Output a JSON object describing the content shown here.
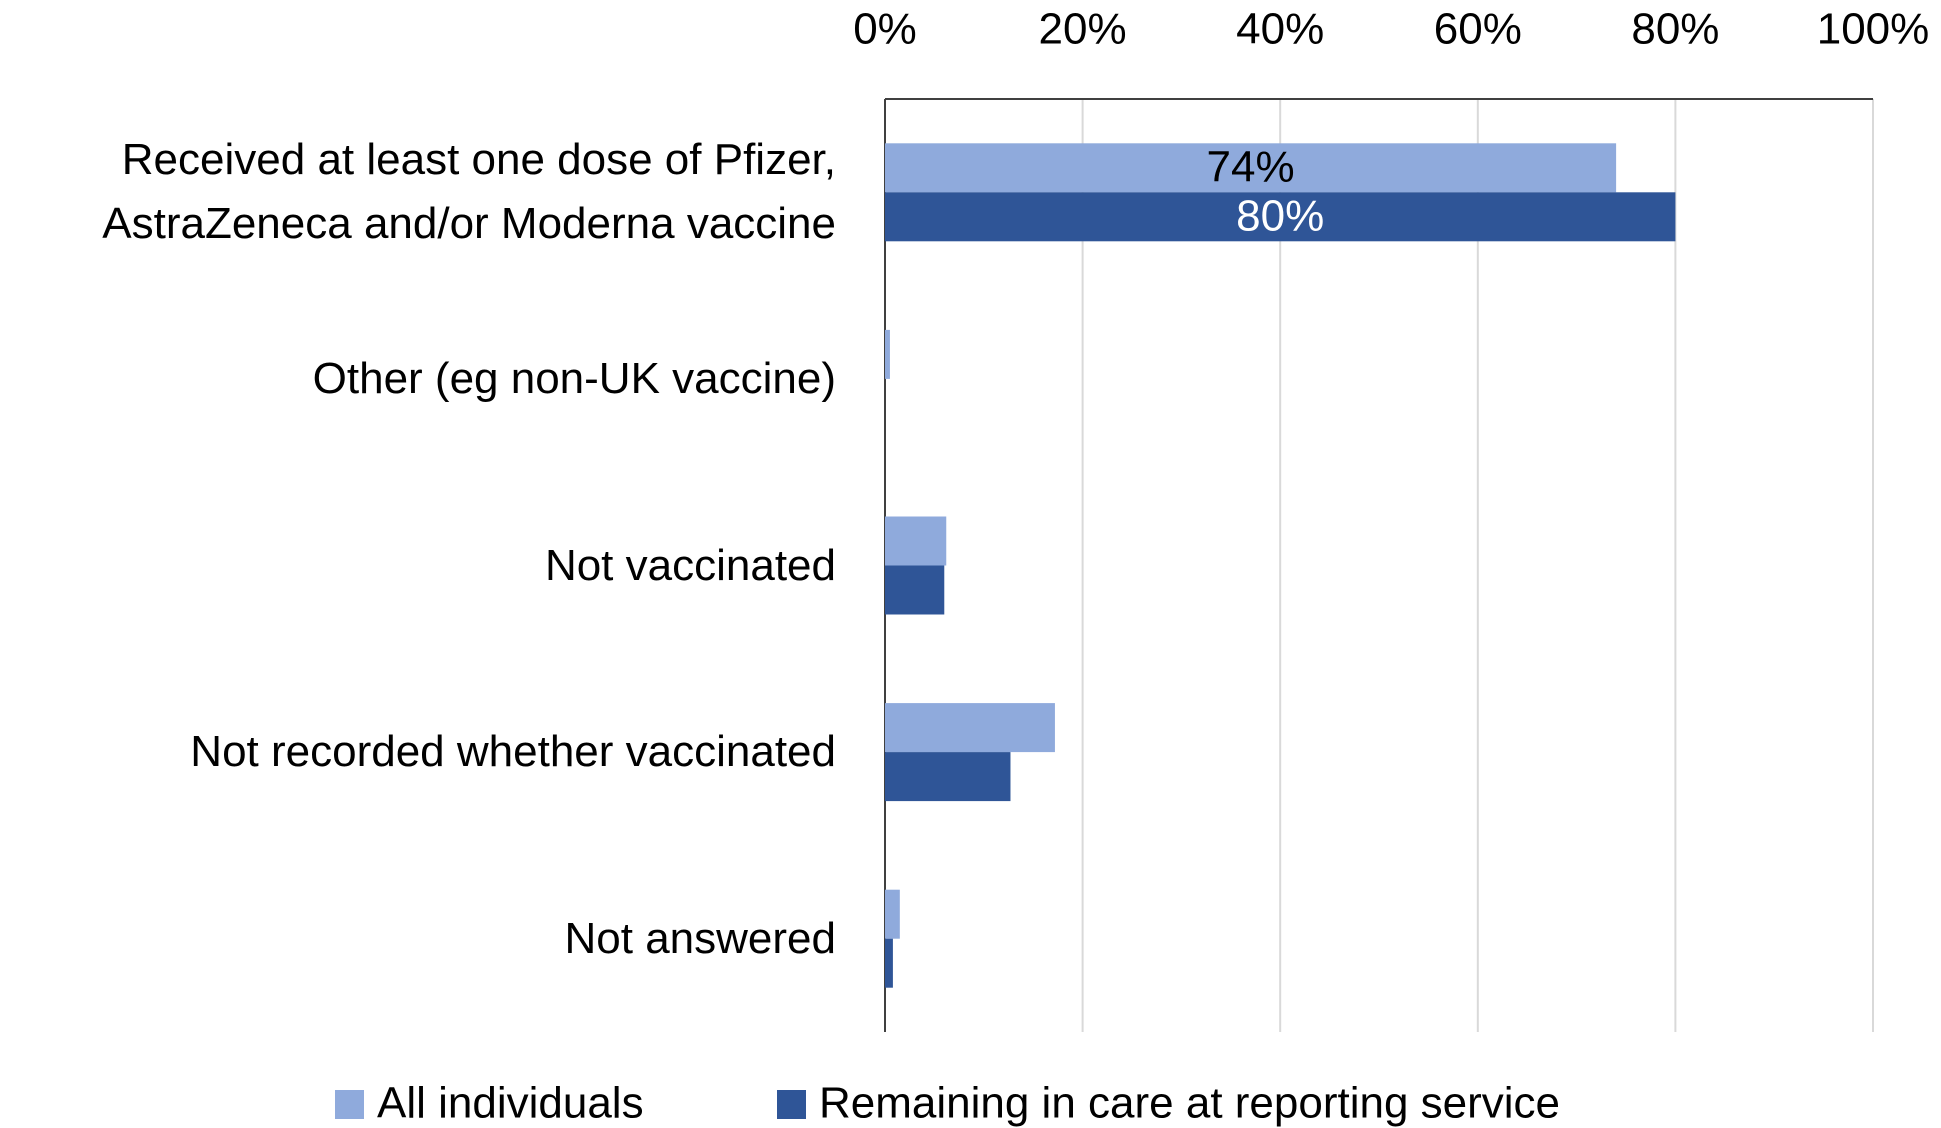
{
  "chart_data": {
    "type": "barh",
    "categories": [
      "Received at least one dose of Pfizer, AstraZeneca and/or Moderna vaccine",
      "Other (eg non-UK vaccine)",
      "Not vaccinated",
      "Not recorded whether vaccinated",
      "Not answered"
    ],
    "series": [
      {
        "name": "All individuals",
        "color": "#8faadc",
        "values": [
          74,
          0.5,
          6.2,
          17.2,
          1.5
        ],
        "value_labels": [
          "74%",
          null,
          null,
          null,
          null
        ],
        "label_color": "#000000"
      },
      {
        "name": "Remaining in care at reporting service",
        "color": "#2f5597",
        "values": [
          80,
          0,
          6.0,
          12.7,
          0.8
        ],
        "value_labels": [
          "80%",
          null,
          null,
          null,
          null
        ],
        "label_color": "#ffffff"
      }
    ],
    "xlim": [
      0,
      100
    ],
    "xticks": [
      {
        "value": 0,
        "label": "0%"
      },
      {
        "value": 20,
        "label": "20%"
      },
      {
        "value": 40,
        "label": "40%"
      },
      {
        "value": 60,
        "label": "60%"
      },
      {
        "value": 80,
        "label": "80%"
      },
      {
        "value": 100,
        "label": "100%"
      }
    ],
    "grid": true,
    "legend": "bottom"
  }
}
